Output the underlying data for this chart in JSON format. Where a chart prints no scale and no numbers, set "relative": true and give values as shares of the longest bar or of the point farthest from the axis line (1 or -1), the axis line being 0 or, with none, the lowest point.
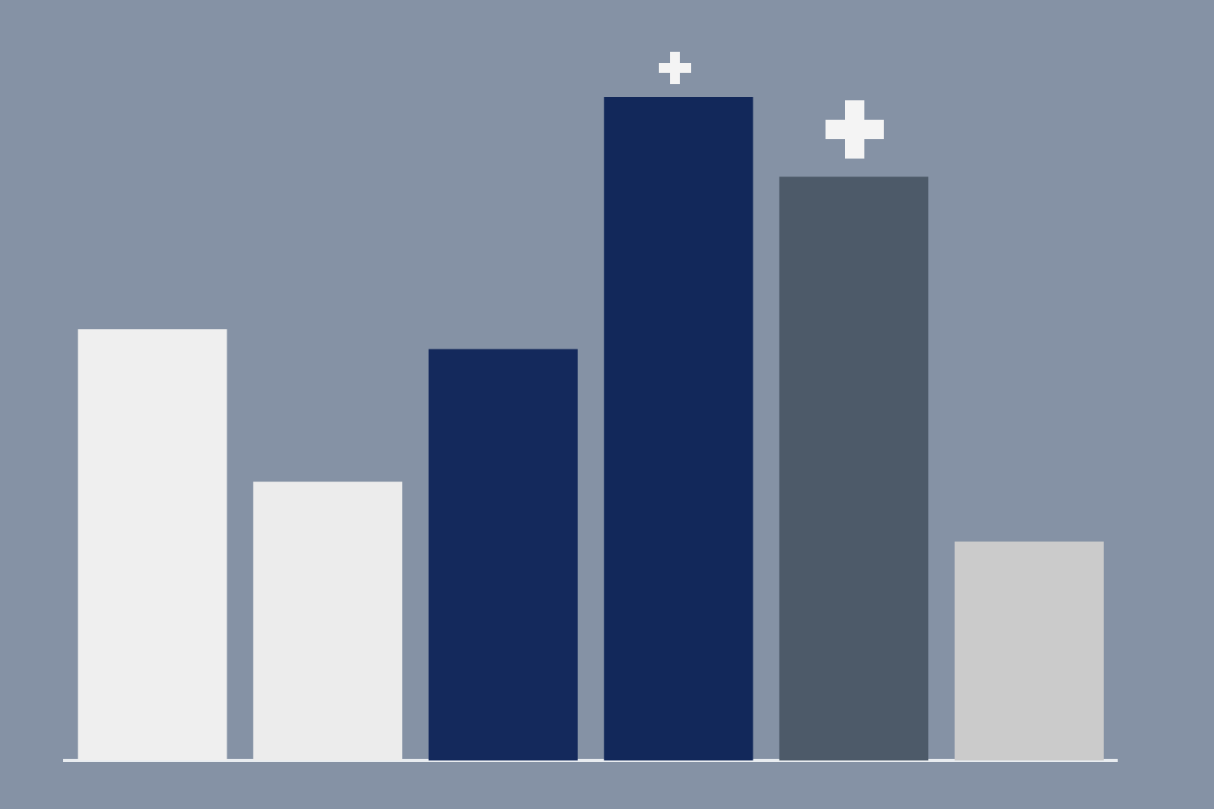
{
  "chart_data": {
    "type": "bar",
    "relative": true,
    "categories": [
      null,
      null,
      null,
      null,
      null,
      null
    ],
    "values": [
      0.65,
      0.42,
      0.62,
      1,
      0.88,
      0.33
    ],
    "colors": [
      "#efefef",
      "#ececec",
      "#14295c",
      "#12285a",
      "#4d5a69",
      "#cbcbcb"
    ],
    "grid": false,
    "legend": false
  }
}
